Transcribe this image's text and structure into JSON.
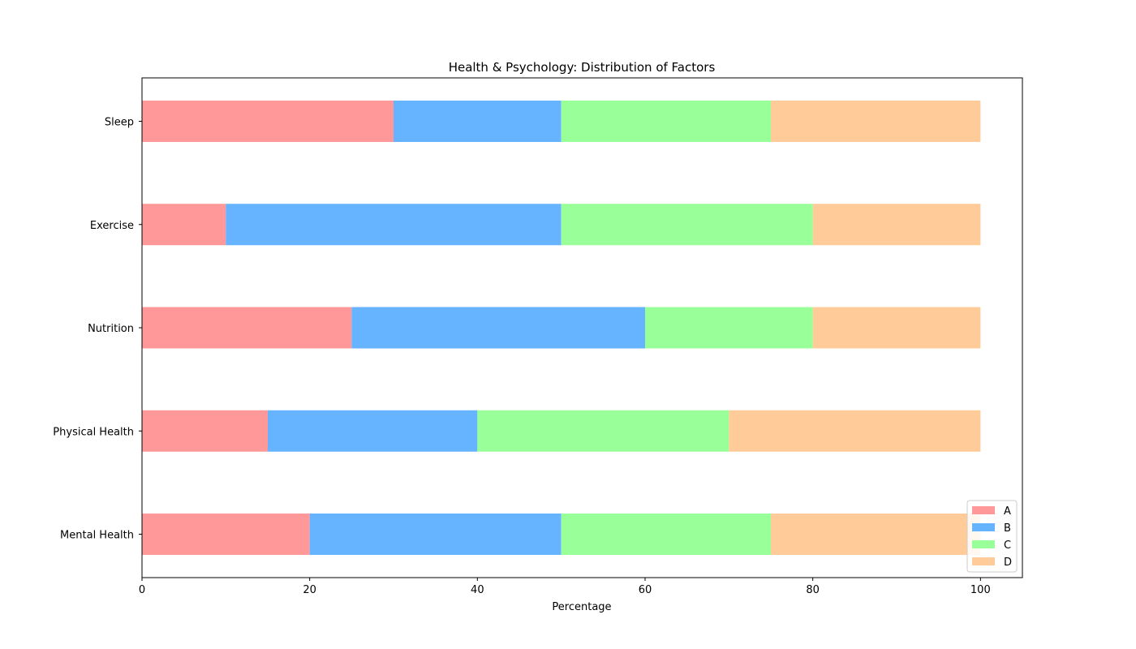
{
  "chart_data": {
    "type": "bar",
    "orientation": "horizontal",
    "stacked": true,
    "title": "Health & Psychology: Distribution of Factors",
    "xlabel": "Percentage",
    "ylabel": "",
    "categories": [
      "Mental Health",
      "Physical Health",
      "Nutrition",
      "Exercise",
      "Sleep"
    ],
    "series": [
      {
        "name": "A",
        "color": "#ff9999",
        "values": [
          20,
          15,
          25,
          10,
          30
        ]
      },
      {
        "name": "B",
        "color": "#66b3ff",
        "values": [
          30,
          25,
          35,
          40,
          20
        ]
      },
      {
        "name": "C",
        "color": "#99ff99",
        "values": [
          25,
          30,
          20,
          30,
          25
        ]
      },
      {
        "name": "D",
        "color": "#ffcc99",
        "values": [
          25,
          30,
          20,
          20,
          25
        ]
      }
    ],
    "xlim": [
      0,
      105
    ],
    "xticks": [
      0,
      20,
      40,
      60,
      80,
      100
    ],
    "grid": false,
    "legend": "lower-right"
  }
}
